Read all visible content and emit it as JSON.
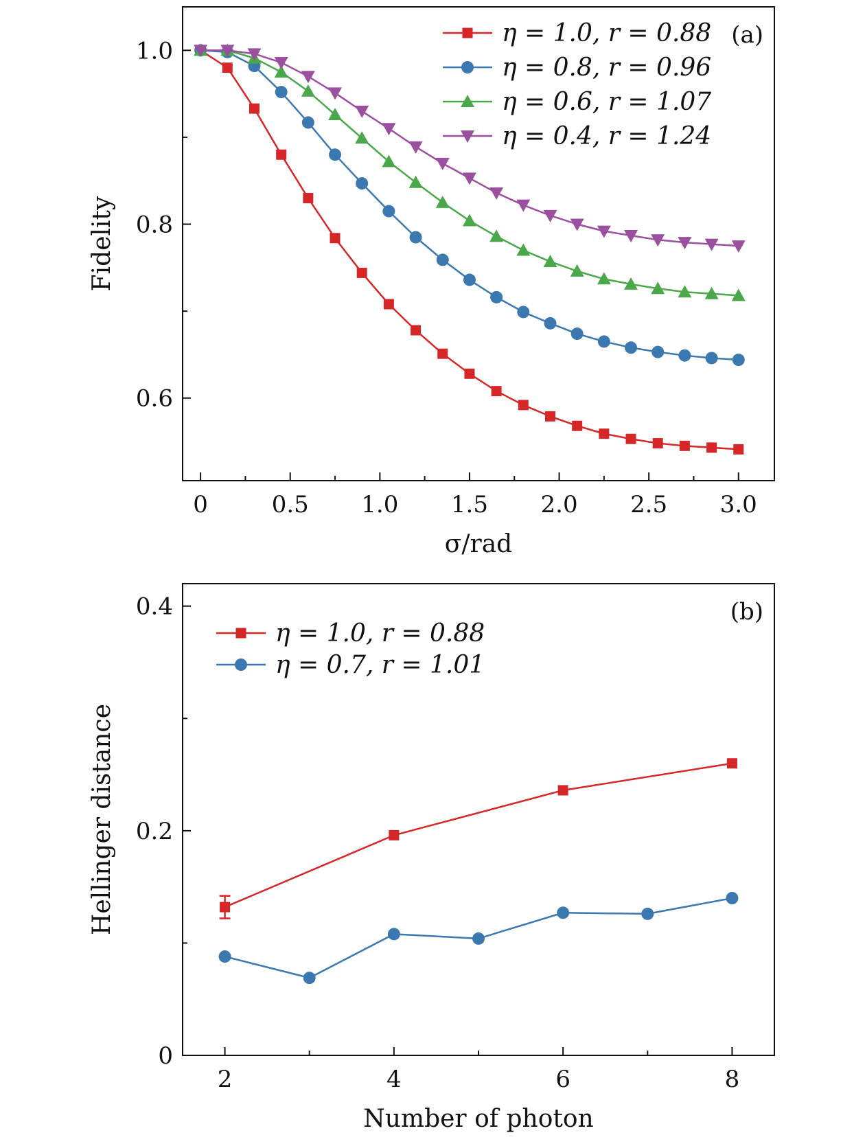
{
  "chart_data": [
    {
      "type": "line",
      "panel_tag": "(a)",
      "xlabel": "σ/rad",
      "ylabel": "Fidelity",
      "xlim": [
        -0.1,
        3.2
      ],
      "ylim": [
        0.505,
        1.05
      ],
      "x_ticks": [
        0,
        0.5,
        1.0,
        1.5,
        2.0,
        2.5,
        3.0
      ],
      "x_tick_labels": [
        "0",
        "0.5",
        "1.0",
        "1.5",
        "2.0",
        "2.5",
        "3.0"
      ],
      "x_minor_ticks": [
        0.25,
        0.75,
        1.25,
        1.75,
        2.25,
        2.75
      ],
      "y_ticks": [
        0.6,
        0.8,
        1.0
      ],
      "y_tick_labels": [
        "0.6",
        "0.8",
        "1.0"
      ],
      "y_minor_ticks": [
        0.7,
        0.9
      ],
      "legend_position": "top-right",
      "x": [
        0,
        0.15,
        0.3,
        0.45,
        0.6,
        0.75,
        0.9,
        1.05,
        1.2,
        1.35,
        1.5,
        1.65,
        1.8,
        1.95,
        2.1,
        2.25,
        2.4,
        2.55,
        2.7,
        2.85,
        3.0
      ],
      "series": [
        {
          "name": "η = 1.0, r = 0.88",
          "color": "#d62728",
          "marker": "square",
          "values": [
            1.0,
            0.98,
            0.933,
            0.88,
            0.83,
            0.784,
            0.744,
            0.708,
            0.678,
            0.651,
            0.628,
            0.608,
            0.592,
            0.579,
            0.568,
            0.559,
            0.553,
            0.548,
            0.545,
            0.543,
            0.541
          ]
        },
        {
          "name": "η = 0.8, r = 0.96",
          "color": "#3b78b0",
          "marker": "circle",
          "values": [
            1.0,
            0.998,
            0.982,
            0.952,
            0.917,
            0.88,
            0.847,
            0.815,
            0.785,
            0.759,
            0.736,
            0.716,
            0.699,
            0.686,
            0.674,
            0.665,
            0.658,
            0.653,
            0.649,
            0.646,
            0.644
          ]
        },
        {
          "name": "η = 0.6, r = 1.07",
          "color": "#4aa84a",
          "marker": "triangle-up",
          "values": [
            1.0,
            1.0,
            0.991,
            0.975,
            0.953,
            0.926,
            0.899,
            0.872,
            0.848,
            0.825,
            0.804,
            0.786,
            0.77,
            0.757,
            0.746,
            0.737,
            0.731,
            0.726,
            0.722,
            0.72,
            0.718
          ]
        },
        {
          "name": "η = 0.4, r = 1.24",
          "color": "#9b4f9f",
          "marker": "triangle-down",
          "values": [
            1.0,
            1.0,
            0.996,
            0.986,
            0.97,
            0.951,
            0.93,
            0.91,
            0.889,
            0.87,
            0.853,
            0.836,
            0.822,
            0.81,
            0.8,
            0.792,
            0.787,
            0.782,
            0.779,
            0.777,
            0.775
          ]
        }
      ]
    },
    {
      "type": "line",
      "panel_tag": "(b)",
      "xlabel": "Number of photon",
      "ylabel": "Hellinger distance",
      "xlim": [
        1.5,
        8.5
      ],
      "ylim": [
        0,
        0.42
      ],
      "x_ticks": [
        2,
        4,
        6,
        8
      ],
      "x_tick_labels": [
        "2",
        "4",
        "6",
        "8"
      ],
      "x_minor_ticks": [
        3,
        5,
        7
      ],
      "y_ticks": [
        0,
        0.2,
        0.4
      ],
      "y_tick_labels": [
        "0",
        "0.2",
        "0.4"
      ],
      "y_minor_ticks": [
        0.1,
        0.3
      ],
      "legend_position": "top-left",
      "series": [
        {
          "name": "η = 1.0, r = 0.88",
          "color": "#d62728",
          "marker": "square",
          "x": [
            2,
            4,
            6,
            8
          ],
          "values": [
            0.132,
            0.196,
            0.236,
            0.26
          ],
          "errors": [
            0.01,
            0.002,
            0.002,
            0.002
          ]
        },
        {
          "name": "η = 0.7, r = 1.01",
          "color": "#3b78b0",
          "marker": "circle",
          "x": [
            2,
            3,
            4,
            5,
            6,
            7,
            8
          ],
          "values": [
            0.088,
            0.069,
            0.108,
            0.104,
            0.127,
            0.126,
            0.14
          ],
          "errors": [
            0.003,
            0,
            0,
            0,
            0,
            0,
            0
          ]
        }
      ]
    }
  ]
}
